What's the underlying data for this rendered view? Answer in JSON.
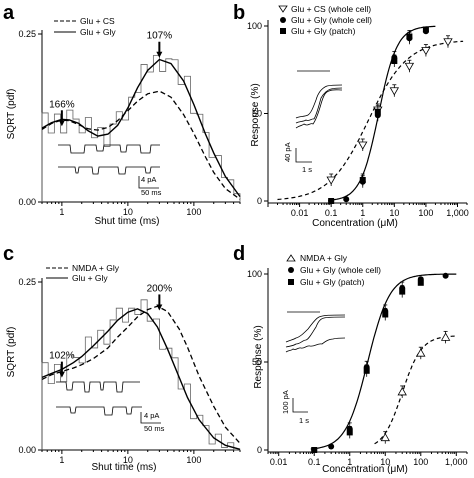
{
  "chart_data": [
    {
      "panel": "a",
      "type": "line",
      "title": "",
      "xlabel": "Shut time (ms)",
      "ylabel": "SQRT (pdf)",
      "x_scale": "log",
      "xlim": [
        0.5,
        500
      ],
      "ylim": [
        0,
        0.25
      ],
      "x_ticks": [
        1,
        10,
        100
      ],
      "x_tick_labels": [
        "1",
        "10",
        "100"
      ],
      "y_ticks": [
        0,
        0.25
      ],
      "y_tick_labels": [
        "0.00",
        "0.25"
      ],
      "legend_position": "top-left",
      "series": [
        {
          "name": "Glu + CS",
          "style": "dashed",
          "x": [
            0.5,
            0.7,
            1,
            1.3,
            1.8,
            2.5,
            3.5,
            5,
            7,
            10,
            14,
            20,
            30,
            45,
            70,
            100,
            150,
            200,
            300,
            500
          ],
          "y": [
            0.108,
            0.117,
            0.122,
            0.121,
            0.115,
            0.109,
            0.107,
            0.111,
            0.121,
            0.136,
            0.15,
            0.161,
            0.165,
            0.156,
            0.13,
            0.102,
            0.067,
            0.044,
            0.02,
            0.004
          ]
        },
        {
          "name": "Glu + Gly",
          "style": "solid",
          "x": [
            0.5,
            0.7,
            1,
            1.3,
            1.8,
            2.5,
            3.5,
            5,
            7,
            10,
            14,
            20,
            30,
            45,
            70,
            100,
            150,
            200,
            300,
            500
          ],
          "y": [
            0.11,
            0.118,
            0.123,
            0.122,
            0.117,
            0.106,
            0.098,
            0.101,
            0.114,
            0.14,
            0.17,
            0.196,
            0.212,
            0.206,
            0.18,
            0.145,
            0.101,
            0.073,
            0.038,
            0.008
          ]
        }
      ],
      "annotations": [
        {
          "text": "166%",
          "x": 1,
          "y": 0.135
        },
        {
          "text": "107%",
          "x": 30,
          "y": 0.237
        }
      ],
      "scale_bar": {
        "current": "4 pA",
        "time": "50 ms"
      }
    },
    {
      "panel": "b",
      "type": "scatter",
      "title": "",
      "xlabel": "Concentration (μM)",
      "ylabel": "Response (%)",
      "x_scale": "log",
      "xlim": [
        0.001,
        2000
      ],
      "ylim": [
        0,
        100
      ],
      "x_tick_labels": [
        "0.01",
        "0.1",
        "1",
        "10",
        "100",
        "1,000"
      ],
      "y_ticks": [
        0,
        50,
        100
      ],
      "y_tick_labels": [
        "0",
        "50",
        "100"
      ],
      "legend_position": "top-right",
      "series": [
        {
          "name": "Glu + CS (whole cell)",
          "marker": "open-triangle-down",
          "fit": "dashed",
          "x": [
            0.1,
            1,
            3,
            10,
            30,
            100,
            500
          ],
          "y": [
            12,
            32,
            52,
            63,
            77,
            86,
            91
          ]
        },
        {
          "name": "Glu + Gly (whole cell)",
          "marker": "filled-circle",
          "fit": "solid",
          "x": [
            0.1,
            0.3,
            1,
            3,
            10,
            30,
            100
          ],
          "y": [
            0,
            1,
            11,
            49,
            82,
            93,
            97
          ]
        },
        {
          "name": "Glu + Gly (patch)",
          "marker": "filled-square",
          "fit": "solid",
          "x": [
            0.1,
            1,
            3,
            10,
            30,
            100
          ],
          "y": [
            0,
            12,
            51,
            80,
            94,
            98
          ]
        }
      ],
      "scale_bar": {
        "current": "40 pA",
        "time": "1 s"
      }
    },
    {
      "panel": "c",
      "type": "line",
      "title": "",
      "xlabel": "Shut time (ms)",
      "ylabel": "SQRT (pdf)",
      "x_scale": "log",
      "xlim": [
        0.5,
        500
      ],
      "ylim": [
        0,
        0.25
      ],
      "x_ticks": [
        1,
        10,
        100
      ],
      "x_tick_labels": [
        "1",
        "10",
        "100"
      ],
      "y_ticks": [
        0,
        0.25
      ],
      "y_tick_labels": [
        "0.00",
        "0.25"
      ],
      "legend_position": "top-left",
      "series": [
        {
          "name": "NMDA + Gly",
          "style": "dashed",
          "x": [
            0.5,
            0.7,
            1,
            1.5,
            2,
            3,
            5,
            7,
            10,
            14,
            20,
            28,
            40,
            60,
            80,
            120,
            200,
            300,
            500
          ],
          "y": [
            0.105,
            0.112,
            0.117,
            0.122,
            0.127,
            0.136,
            0.152,
            0.168,
            0.183,
            0.198,
            0.209,
            0.214,
            0.206,
            0.18,
            0.153,
            0.11,
            0.065,
            0.034,
            0.01
          ]
        },
        {
          "name": "Glu + Gly",
          "style": "solid",
          "x": [
            0.5,
            0.7,
            1,
            1.5,
            2,
            3,
            5,
            7,
            10,
            14,
            20,
            28,
            40,
            60,
            80,
            120,
            200,
            300,
            500
          ],
          "y": [
            0.108,
            0.114,
            0.12,
            0.13,
            0.139,
            0.155,
            0.177,
            0.193,
            0.205,
            0.21,
            0.203,
            0.183,
            0.15,
            0.108,
            0.078,
            0.045,
            0.018,
            0.007,
            0.001
          ]
        }
      ],
      "annotations": [
        {
          "text": "102%",
          "x": 1,
          "y": 0.13
        },
        {
          "text": "200%",
          "x": 30,
          "y": 0.23
        }
      ],
      "scale_bar": {
        "current": "4 pA",
        "time": "50 ms"
      }
    },
    {
      "panel": "d",
      "type": "scatter",
      "title": "",
      "xlabel": "Concentration (μM)",
      "ylabel": "Response (%)",
      "x_scale": "log",
      "xlim": [
        0.005,
        2000
      ],
      "ylim": [
        0,
        100
      ],
      "x_tick_labels": [
        "0.01",
        "0.1",
        "1",
        "10",
        "100",
        "1,000"
      ],
      "y_ticks": [
        0,
        50,
        100
      ],
      "y_tick_labels": [
        "0",
        "50",
        "100"
      ],
      "legend_position": "top-left",
      "series": [
        {
          "name": "NMDA + Gly",
          "marker": "open-triangle-up",
          "fit": "dashed",
          "x": [
            10,
            30,
            100,
            500
          ],
          "y": [
            7,
            33,
            55,
            64
          ]
        },
        {
          "name": "Glu + Gly (whole cell)",
          "marker": "filled-circle",
          "fit": "solid",
          "x": [
            0.1,
            0.3,
            1,
            3,
            10,
            30,
            100,
            500
          ],
          "y": [
            0,
            2,
            12,
            47,
            79,
            92,
            97,
            99
          ]
        },
        {
          "name": "Glu + Gly (patch)",
          "marker": "filled-square",
          "fit": "solid",
          "x": [
            0.1,
            1,
            3,
            10,
            30,
            100
          ],
          "y": [
            0,
            10,
            45,
            77,
            90,
            95
          ]
        }
      ],
      "scale_bar": {
        "current": "100 pA",
        "time": "1 s"
      }
    }
  ]
}
